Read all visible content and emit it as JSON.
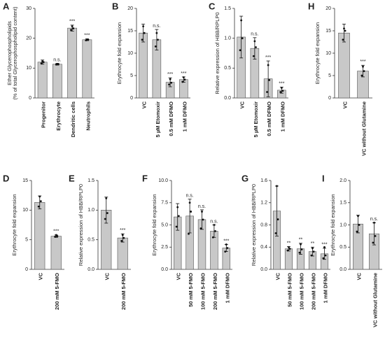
{
  "chart_data": [
    {
      "type": "bar",
      "label": "A",
      "ylabel": [
        "Ether Glycerophospholipids",
        "(% of total Glycerophospholipid content)"
      ],
      "categories": [
        "Progenitor",
        "Erythrocyte",
        "Dendritic cells",
        "Neutrophils"
      ],
      "values": [
        12,
        11.3,
        23.4,
        19.5
      ],
      "errors": [
        0.7,
        0.3,
        1.0,
        0.3
      ],
      "points": [
        [
          11.6,
          12.3,
          12.0
        ],
        [
          11.2,
          11.4,
          11.3
        ],
        [
          22.8,
          24,
          23.3
        ],
        [
          19.3,
          19.6,
          19.5
        ]
      ],
      "annotations": [
        null,
        "n.s.",
        "***",
        "***"
      ],
      "ylim": [
        0,
        30
      ],
      "yticks": [
        0,
        10,
        20,
        30
      ],
      "color": "#c8c8c8"
    },
    {
      "type": "bar",
      "label": "B",
      "ylabel": "Erythrocyte fold expansion",
      "categories": [
        "VC",
        "5 µM Etomoxir",
        "0.5 mM DFMO",
        "1 mM DFMO"
      ],
      "values": [
        14.5,
        13,
        3.5,
        4.1
      ],
      "errors": [
        2,
        2.3,
        1,
        0.6
      ],
      "points": [
        [
          13,
          16,
          14.5
        ],
        [
          11.5,
          14.5,
          13
        ],
        [
          3,
          4.2,
          3.4
        ],
        [
          3.6,
          4.6,
          4.1
        ]
      ],
      "annotations": [
        null,
        "n.s.",
        "***",
        "***"
      ],
      "ylim": [
        0,
        20
      ],
      "yticks": [
        0,
        5,
        10,
        15,
        20
      ],
      "color": "#c8c8c8"
    },
    {
      "type": "bar",
      "label": "C",
      "ylabel": "Relative expression of HBB/RPLP0",
      "categories": [
        "VC",
        "5 µM Etomoxir",
        "0.5 mM DFMO",
        "1 mM DFMO"
      ],
      "values": [
        1.02,
        0.83,
        0.32,
        0.13
      ],
      "errors": [
        0.35,
        0.18,
        0.3,
        0.05
      ],
      "points": [
        [
          0.8,
          1.3,
          1.0
        ],
        [
          0.7,
          0.95,
          0.85
        ],
        [
          0.1,
          0.55,
          0.3
        ],
        [
          0.1,
          0.17,
          0.12
        ]
      ],
      "annotations": [
        null,
        "n.s.",
        "***",
        "***"
      ],
      "ylim": [
        0,
        1.5
      ],
      "yticks": [
        {
          "value": 0,
          "label": "0.0"
        },
        0.5,
        {
          "value": 1,
          "label": "1.0"
        },
        1.5
      ],
      "color": "#c8c8c8"
    },
    {
      "type": "bar",
      "label": "H",
      "ylabel": "Erythrocyte fold expansion",
      "categories": [
        "VC",
        "VC without Glutamine"
      ],
      "values": [
        14.5,
        6
      ],
      "errors": [
        2,
        1.3
      ],
      "points": [
        [
          13,
          15.5,
          15
        ],
        [
          5,
          7,
          6
        ]
      ],
      "annotations": [
        null,
        "***"
      ],
      "ylim": [
        0,
        20
      ],
      "yticks": [
        0,
        5,
        10,
        15,
        20
      ],
      "color": "#c8c8c8"
    },
    {
      "type": "bar",
      "label": "D",
      "ylabel": "Erythrocyte fold expansion",
      "categories": [
        "VC",
        "200 mM 5-FMO"
      ],
      "values": [
        11.3,
        5.6
      ],
      "errors": [
        1.1,
        0.2
      ],
      "points": [
        [
          10.6,
          12.3,
          11.5
        ],
        [
          5.5,
          5.8,
          5.6
        ]
      ],
      "annotations": [
        null,
        "***"
      ],
      "ylim": [
        0,
        15
      ],
      "yticks": [
        0,
        5,
        10,
        15
      ],
      "color": "#c8c8c8"
    },
    {
      "type": "bar",
      "label": "E",
      "ylabel": "Relative expression of HBB/RPLP0",
      "categories": [
        "VC",
        "200 mM 5-FMO"
      ],
      "values": [
        1.0,
        0.53
      ],
      "errors": [
        0.22,
        0.07
      ],
      "points": [
        [
          0.85,
          1.2,
          0.95
        ],
        [
          0.48,
          0.58,
          0.53
        ]
      ],
      "annotations": [
        null,
        "***"
      ],
      "ylim": [
        0,
        1.5
      ],
      "yticks": [
        {
          "value": 0,
          "label": "0.0"
        },
        0.5,
        {
          "value": 1,
          "label": "1.0"
        },
        1.5
      ],
      "color": "#c8c8c8"
    },
    {
      "type": "bar",
      "label": "F",
      "ylabel": "Erythrocyte fold expansion",
      "categories": [
        "VC",
        "50 mM 5-FMO",
        "100 mM 5-FMO",
        "200 mM 5-FMO",
        "1 mM DFMO"
      ],
      "values": [
        5.9,
        6.0,
        5.6,
        4.3,
        2.4
      ],
      "errors": [
        1.5,
        1.9,
        1.1,
        0.7,
        0.4
      ],
      "points": [
        [
          4.8,
          7,
          6
        ],
        [
          4,
          7.5,
          6.5
        ],
        [
          4.6,
          6.5,
          5.6
        ],
        [
          3.6,
          5,
          4.3
        ],
        [
          2,
          2.8,
          2.4
        ]
      ],
      "annotations": [
        null,
        "n.s.",
        "n.s.",
        "n.s.",
        "***"
      ],
      "ylim": [
        0,
        10
      ],
      "yticks": [
        {
          "value": 0,
          "label": "0.0"
        },
        2.5,
        {
          "value": 5,
          "label": "5.0"
        },
        7.5,
        {
          "value": 10,
          "label": "10.0"
        }
      ],
      "color": "#c8c8c8"
    },
    {
      "type": "bar",
      "label": "G",
      "ylabel": "Relative expression of HBB/RPLP0",
      "categories": [
        "VC",
        "50 mM 5-FMO",
        "100 mM 5-FMO",
        "200 mM 5-FMO",
        "1 mM DFMO"
      ],
      "values": [
        1.05,
        0.37,
        0.37,
        0.32,
        0.28
      ],
      "errors": [
        0.45,
        0.04,
        0.1,
        0.08,
        0.1
      ],
      "points": [
        [
          0.65,
          1.5,
          0.9
        ],
        [
          0.34,
          0.4,
          0.37
        ],
        [
          0.3,
          0.45,
          0.36
        ],
        [
          0.25,
          0.38,
          0.32
        ],
        [
          0.2,
          0.4,
          0.25
        ]
      ],
      "annotations": [
        null,
        "**",
        "**",
        "**",
        "***"
      ],
      "ylim": [
        0,
        1.6
      ],
      "yticks": [
        {
          "value": 0,
          "label": "0.0"
        },
        0.4,
        0.8,
        1.2,
        1.6
      ],
      "color": "#c8c8c8"
    },
    {
      "type": "bar",
      "label": "I",
      "ylabel": "Erythrocyte fold expansion",
      "categories": [
        "VC",
        "VC without Glutamine"
      ],
      "values": [
        1.02,
        0.8
      ],
      "errors": [
        0.2,
        0.25
      ],
      "points": [
        [
          0.85,
          1.2,
          1.0
        ],
        [
          0.6,
          1.05,
          0.75
        ]
      ],
      "annotations": [
        null,
        "n.s."
      ],
      "ylim": [
        0,
        2
      ],
      "yticks": [
        {
          "value": 0,
          "label": "0.0"
        },
        0.5,
        {
          "value": 1,
          "label": "1.0"
        },
        1.5,
        {
          "value": 2,
          "label": "2.0"
        }
      ],
      "color": "#c8c8c8"
    }
  ]
}
